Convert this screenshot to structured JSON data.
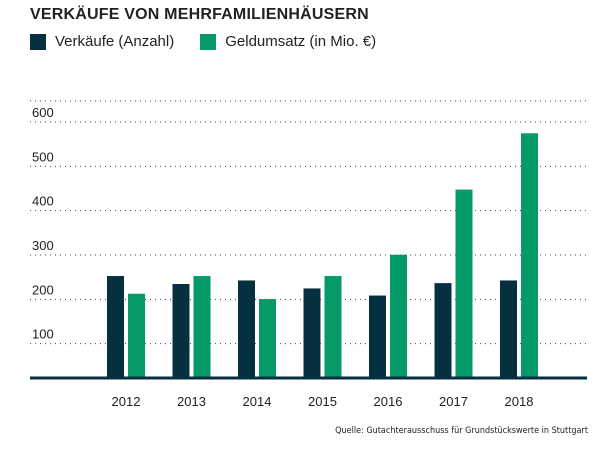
{
  "chart_data": {
    "type": "bar",
    "title": "VERKÄUFE VON MEHRFAMILIENHÄUSERN",
    "categories": [
      "2012",
      "2013",
      "2014",
      "2015",
      "2016",
      "2017",
      "2018"
    ],
    "series": [
      {
        "name": "Verkäufe (Anzahl)",
        "color": "#06303f",
        "values": [
          230,
          212,
          220,
          202,
          186,
          214,
          220
        ]
      },
      {
        "name": "Geldumsatz (in Mio. €)",
        "color": "#069a6a",
        "values": [
          190,
          230,
          178,
          230,
          278,
          425,
          552
        ]
      }
    ],
    "ylim": [
      0,
      600
    ],
    "yticks": [
      100,
      200,
      300,
      400,
      500,
      600
    ],
    "grid": "dotted-horizontal",
    "legend_position": "top-left",
    "source": "Quelle: Gutachterausschuss für Grundstückswerte in Stuttgart"
  }
}
